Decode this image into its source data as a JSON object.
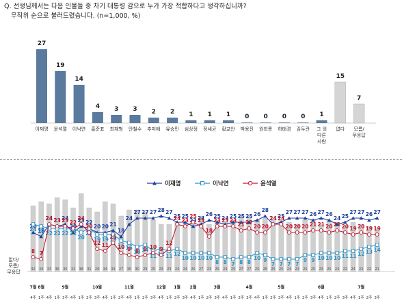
{
  "question": {
    "line1": "Q. 선생님께서는 다음 인물들 중 차기 대통령 감으로 누가 가장 적합하다고 생각하십니까?",
    "line2": "무작위 순으로 불러드렸습니다. (n=1,000, %)"
  },
  "colors": {
    "main_bar": "#5a7a9e",
    "grey_bar": "#d5d5d5",
    "lee_jm": "#1f3f9e",
    "lee_ny": "#2b93c8",
    "yoon": "#c0182d",
    "trend_bar": "#cfcfcf"
  },
  "chart_data": [
    {
      "type": "bar",
      "categories": [
        "이재명",
        "윤석열",
        "이낙연",
        "홍준표",
        "최재형",
        "안철수",
        "추미애",
        "유승민",
        "심상정",
        "정세균",
        "황교안",
        "박용진",
        "원희룡",
        "하태경",
        "김두관",
        "그 외 다른 사람",
        "없다",
        "모름/ 무응답"
      ],
      "values": [
        27,
        19,
        14,
        4,
        3,
        3,
        2,
        2,
        1,
        1,
        1,
        0,
        0,
        0,
        0,
        1,
        15,
        7
      ],
      "ylim": [
        0,
        30
      ]
    },
    {
      "type": "line",
      "legend": [
        "이재명",
        "이낙연",
        "윤석열"
      ],
      "legend_position": "top-center",
      "bar_label": "없다/ 모름/ 무응답",
      "month_labels": [
        "7월",
        "8월",
        "9월",
        "10월",
        "11월",
        "12월",
        "1월",
        "2월",
        "3월",
        "4월",
        "5월",
        "6월",
        "7월"
      ],
      "week_labels": [
        "4주",
        "1주",
        "4주",
        "1주",
        "3주",
        "4주",
        "1주",
        "2주",
        "3주",
        "4주",
        "1주",
        "2주",
        "4주",
        "1주",
        "2주",
        "3주",
        "4주",
        "1주",
        "2주",
        "3주",
        "4주",
        "1주",
        "2주",
        "3주",
        "4주",
        "1주",
        "2주",
        "3주",
        "4주",
        "1주",
        "2주",
        "3주",
        "4주",
        "1주",
        "2주",
        "3주",
        "4주",
        "1주",
        "2주",
        "3주",
        "4주",
        "1주",
        "2주",
        "3주"
      ],
      "bar_value_labels": [
        "32",
        "34",
        "33",
        "36",
        "35",
        "31",
        "38",
        "31",
        "29",
        "34",
        "33",
        "27",
        "30",
        "30",
        "29",
        "25",
        "23",
        "23",
        "24",
        "24",
        "25",
        "27",
        "23",
        "25",
        "24",
        "25",
        "27",
        "27",
        "25",
        "26",
        "25",
        "25",
        "24",
        "23",
        "25",
        "25",
        "23",
        "25",
        "24",
        "22",
        "24",
        "23",
        "22",
        "21"
      ],
      "series": [
        {
          "name": "이재명",
          "values": [
            20,
            18,
            24,
            23,
            24,
            20,
            23,
            22,
            20,
            20,
            21,
            18,
            24,
            27,
            27,
            27,
            28,
            27,
            25,
            25,
            23,
            24,
            26,
            25,
            24,
            25,
            25,
            25,
            26,
            28,
            24,
            25,
            27,
            27,
            27,
            26,
            27,
            26,
            24,
            25,
            27,
            27,
            26,
            27
          ]
        },
        {
          "name": "이낙연",
          "values": [
            24,
            23,
            22,
            22,
            22,
            22,
            20,
            22,
            19,
            19,
            19,
            16,
            15,
            13,
            14,
            11,
            12,
            11,
            12,
            10,
            10,
            10,
            10,
            8,
            8,
            7,
            8,
            8,
            10,
            9,
            7,
            7,
            7,
            7,
            9,
            9,
            10,
            10,
            10,
            11,
            11,
            12,
            13,
            14
          ]
        },
        {
          "name": "윤석열",
          "values": [
            8,
            7,
            24,
            23,
            23,
            22,
            24,
            20,
            12,
            11,
            15,
            10,
            9,
            8,
            9,
            10,
            9,
            12,
            24,
            23,
            25,
            23,
            18,
            23,
            23,
            23,
            21,
            22,
            20,
            20,
            24,
            24,
            20,
            20,
            20,
            21,
            21,
            20,
            21,
            20,
            19,
            20,
            19,
            19
          ]
        }
      ],
      "ylim": [
        0,
        40
      ]
    }
  ]
}
